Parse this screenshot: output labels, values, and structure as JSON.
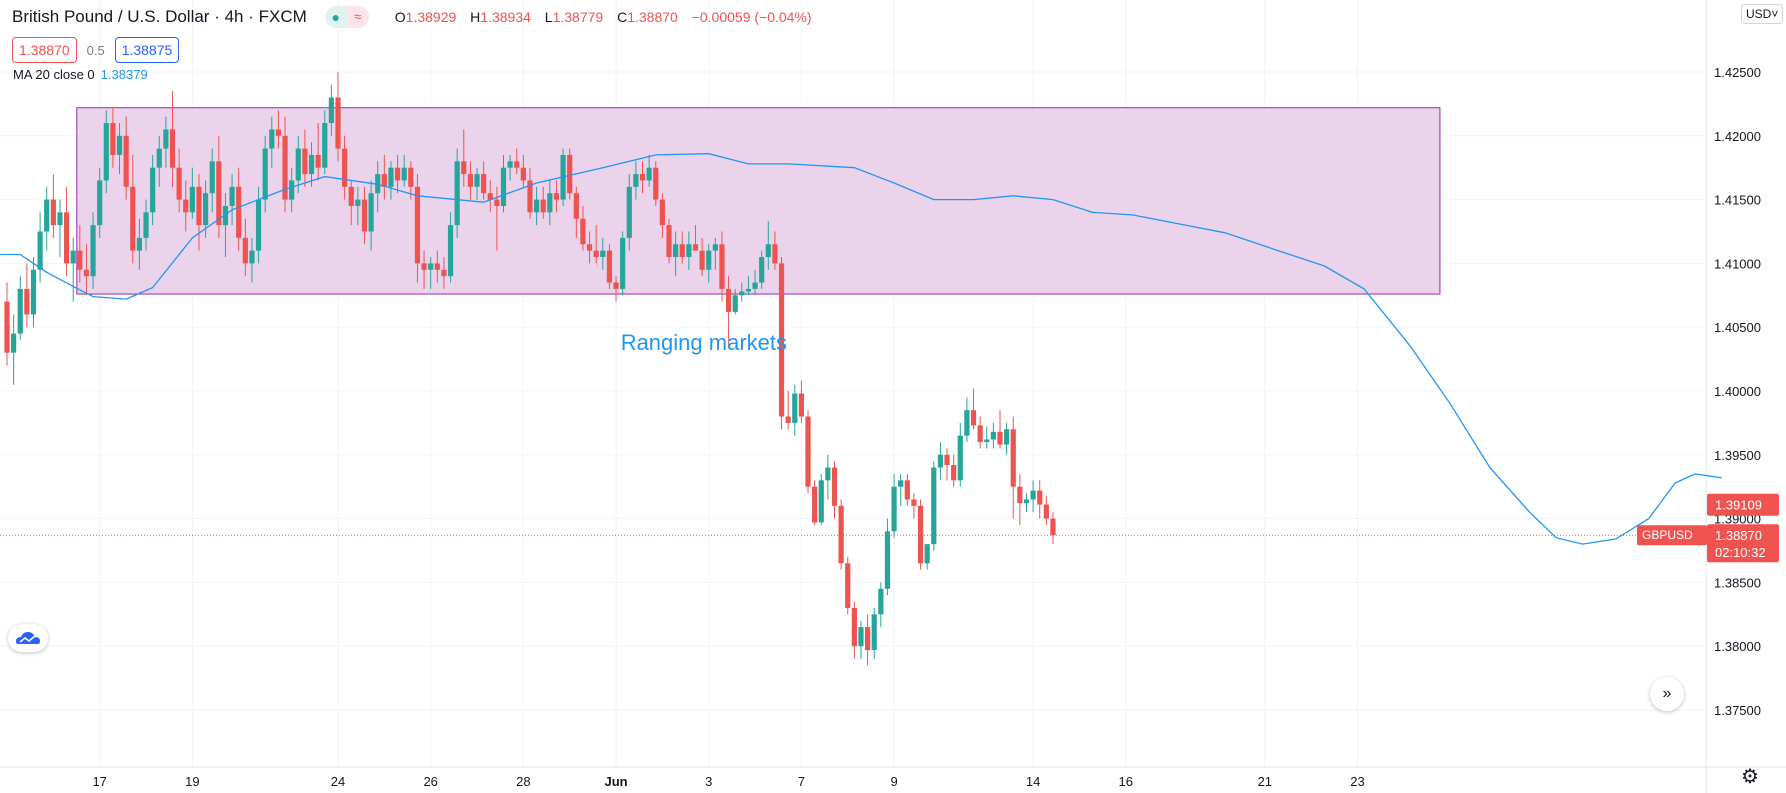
{
  "header": {
    "title": "British Pound / U.S. Dollar · 4h · FXCM",
    "o_label": "O",
    "o_value": "1.38929",
    "h_label": "H",
    "h_value": "1.38934",
    "l_label": "L",
    "l_value": "1.38779",
    "c_label": "C",
    "c_value": "1.38870",
    "change": "−0.00059 (−0.04%)"
  },
  "quote": {
    "bid": "1.38870",
    "spread": "0.5",
    "ask": "1.38875"
  },
  "indicator": {
    "label": "MA 20 close 0",
    "value": "1.38379"
  },
  "currency_button": "USD",
  "annotation": {
    "text": "Ranging markets"
  },
  "price_labels": {
    "level": "1.39109",
    "symbol": "GBPUSD",
    "last": "1.38870",
    "countdown": "02:10:32"
  },
  "colors": {
    "up": "#26a69a",
    "down": "#ef5350",
    "ma": "#2196f3",
    "range_fill": "#e7cbe9",
    "range_border": "#9c27b0",
    "annotation": "#2196f3"
  },
  "icons": [
    "indicator-status-icon",
    "wave-icon",
    "tradingview-logo-icon",
    "scroll-forward-icon",
    "settings-gear-icon"
  ],
  "chart_data": {
    "type": "candlestick",
    "symbol": "GBPUSD",
    "interval": "4h",
    "ylim": [
      1.373,
      1.43
    ],
    "y_ticks": [
      "1.42500",
      "1.42000",
      "1.41500",
      "1.41000",
      "1.40500",
      "1.40000",
      "1.39500",
      "1.39000",
      "1.38500",
      "1.38000",
      "1.37500"
    ],
    "x_ticks": [
      "17",
      "19",
      "24",
      "26",
      "28",
      "Jun",
      "3",
      "7",
      "9",
      "14",
      "16",
      "21",
      "23"
    ],
    "range_box": {
      "price_top": 1.4222,
      "price_bottom": 1.4076,
      "first_bar": 11,
      "last_bar": 216,
      "label": "Ranging markets"
    },
    "candles": [
      {
        "o": 1.407,
        "h": 1.4085,
        "l": 1.402,
        "c": 1.403
      },
      {
        "o": 1.403,
        "h": 1.406,
        "l": 1.4005,
        "c": 1.4045
      },
      {
        "o": 1.4045,
        "h": 1.409,
        "l": 1.404,
        "c": 1.408
      },
      {
        "o": 1.408,
        "h": 1.41,
        "l": 1.405,
        "c": 1.406
      },
      {
        "o": 1.406,
        "h": 1.4105,
        "l": 1.405,
        "c": 1.4095
      },
      {
        "o": 1.4095,
        "h": 1.414,
        "l": 1.4085,
        "c": 1.4125
      },
      {
        "o": 1.4125,
        "h": 1.416,
        "l": 1.411,
        "c": 1.415
      },
      {
        "o": 1.415,
        "h": 1.417,
        "l": 1.412,
        "c": 1.413
      },
      {
        "o": 1.413,
        "h": 1.415,
        "l": 1.4105,
        "c": 1.414
      },
      {
        "o": 1.414,
        "h": 1.416,
        "l": 1.409,
        "c": 1.41
      },
      {
        "o": 1.41,
        "h": 1.412,
        "l": 1.407,
        "c": 1.411
      },
      {
        "o": 1.411,
        "h": 1.413,
        "l": 1.4085,
        "c": 1.4095
      },
      {
        "o": 1.4095,
        "h": 1.4115,
        "l": 1.4075,
        "c": 1.409
      },
      {
        "o": 1.409,
        "h": 1.414,
        "l": 1.408,
        "c": 1.413
      },
      {
        "o": 1.413,
        "h": 1.4175,
        "l": 1.412,
        "c": 1.4165
      },
      {
        "o": 1.4165,
        "h": 1.422,
        "l": 1.4155,
        "c": 1.421
      },
      {
        "o": 1.421,
        "h": 1.4222,
        "l": 1.4175,
        "c": 1.4185
      },
      {
        "o": 1.4185,
        "h": 1.421,
        "l": 1.417,
        "c": 1.42
      },
      {
        "o": 1.42,
        "h": 1.4215,
        "l": 1.415,
        "c": 1.416
      },
      {
        "o": 1.416,
        "h": 1.4185,
        "l": 1.41,
        "c": 1.411
      },
      {
        "o": 1.411,
        "h": 1.4135,
        "l": 1.4095,
        "c": 1.412
      },
      {
        "o": 1.412,
        "h": 1.415,
        "l": 1.411,
        "c": 1.414
      },
      {
        "o": 1.414,
        "h": 1.4185,
        "l": 1.413,
        "c": 1.4175
      },
      {
        "o": 1.4175,
        "h": 1.42,
        "l": 1.416,
        "c": 1.419
      },
      {
        "o": 1.419,
        "h": 1.4215,
        "l": 1.4175,
        "c": 1.4205
      },
      {
        "o": 1.4205,
        "h": 1.4235,
        "l": 1.416,
        "c": 1.4175
      },
      {
        "o": 1.4175,
        "h": 1.419,
        "l": 1.414,
        "c": 1.415
      },
      {
        "o": 1.415,
        "h": 1.4165,
        "l": 1.4125,
        "c": 1.414
      },
      {
        "o": 1.414,
        "h": 1.4175,
        "l": 1.4135,
        "c": 1.416
      },
      {
        "o": 1.416,
        "h": 1.417,
        "l": 1.411,
        "c": 1.413
      },
      {
        "o": 1.413,
        "h": 1.4165,
        "l": 1.412,
        "c": 1.4155
      },
      {
        "o": 1.4155,
        "h": 1.419,
        "l": 1.414,
        "c": 1.418
      },
      {
        "o": 1.418,
        "h": 1.42,
        "l": 1.412,
        "c": 1.413
      },
      {
        "o": 1.413,
        "h": 1.4155,
        "l": 1.4105,
        "c": 1.4145
      },
      {
        "o": 1.4145,
        "h": 1.417,
        "l": 1.413,
        "c": 1.416
      },
      {
        "o": 1.416,
        "h": 1.4175,
        "l": 1.411,
        "c": 1.412
      },
      {
        "o": 1.412,
        "h": 1.4135,
        "l": 1.409,
        "c": 1.41
      },
      {
        "o": 1.41,
        "h": 1.412,
        "l": 1.4085,
        "c": 1.411
      },
      {
        "o": 1.411,
        "h": 1.416,
        "l": 1.41,
        "c": 1.415
      },
      {
        "o": 1.415,
        "h": 1.42,
        "l": 1.414,
        "c": 1.419
      },
      {
        "o": 1.419,
        "h": 1.4215,
        "l": 1.4175,
        "c": 1.4205
      },
      {
        "o": 1.4205,
        "h": 1.422,
        "l": 1.419,
        "c": 1.42
      },
      {
        "o": 1.42,
        "h": 1.4215,
        "l": 1.414,
        "c": 1.415
      },
      {
        "o": 1.415,
        "h": 1.4175,
        "l": 1.414,
        "c": 1.4165
      },
      {
        "o": 1.4165,
        "h": 1.42,
        "l": 1.4155,
        "c": 1.419
      },
      {
        "o": 1.419,
        "h": 1.4205,
        "l": 1.416,
        "c": 1.417
      },
      {
        "o": 1.417,
        "h": 1.4195,
        "l": 1.416,
        "c": 1.4185
      },
      {
        "o": 1.4185,
        "h": 1.421,
        "l": 1.4165,
        "c": 1.4175
      },
      {
        "o": 1.4175,
        "h": 1.422,
        "l": 1.417,
        "c": 1.421
      },
      {
        "o": 1.421,
        "h": 1.424,
        "l": 1.42,
        "c": 1.423
      },
      {
        "o": 1.423,
        "h": 1.425,
        "l": 1.418,
        "c": 1.419
      },
      {
        "o": 1.419,
        "h": 1.42,
        "l": 1.415,
        "c": 1.416
      },
      {
        "o": 1.416,
        "h": 1.4165,
        "l": 1.413,
        "c": 1.4145
      },
      {
        "o": 1.4145,
        "h": 1.416,
        "l": 1.413,
        "c": 1.415
      },
      {
        "o": 1.415,
        "h": 1.416,
        "l": 1.4115,
        "c": 1.4125
      },
      {
        "o": 1.4125,
        "h": 1.4165,
        "l": 1.411,
        "c": 1.4155
      },
      {
        "o": 1.4155,
        "h": 1.418,
        "l": 1.414,
        "c": 1.417
      },
      {
        "o": 1.417,
        "h": 1.4185,
        "l": 1.415,
        "c": 1.416
      },
      {
        "o": 1.416,
        "h": 1.418,
        "l": 1.415,
        "c": 1.4175
      },
      {
        "o": 1.4175,
        "h": 1.4185,
        "l": 1.4155,
        "c": 1.4165
      },
      {
        "o": 1.4165,
        "h": 1.4185,
        "l": 1.416,
        "c": 1.4175
      },
      {
        "o": 1.4175,
        "h": 1.418,
        "l": 1.415,
        "c": 1.416
      },
      {
        "o": 1.416,
        "h": 1.417,
        "l": 1.4085,
        "c": 1.41
      },
      {
        "o": 1.41,
        "h": 1.411,
        "l": 1.408,
        "c": 1.4095
      },
      {
        "o": 1.4095,
        "h": 1.4105,
        "l": 1.408,
        "c": 1.41
      },
      {
        "o": 1.41,
        "h": 1.411,
        "l": 1.4085,
        "c": 1.4095
      },
      {
        "o": 1.4095,
        "h": 1.4105,
        "l": 1.408,
        "c": 1.409
      },
      {
        "o": 1.409,
        "h": 1.414,
        "l": 1.4085,
        "c": 1.413
      },
      {
        "o": 1.413,
        "h": 1.419,
        "l": 1.412,
        "c": 1.418
      },
      {
        "o": 1.418,
        "h": 1.4205,
        "l": 1.416,
        "c": 1.417
      },
      {
        "o": 1.417,
        "h": 1.418,
        "l": 1.415,
        "c": 1.416
      },
      {
        "o": 1.416,
        "h": 1.4175,
        "l": 1.415,
        "c": 1.417
      },
      {
        "o": 1.417,
        "h": 1.418,
        "l": 1.415,
        "c": 1.4155
      },
      {
        "o": 1.4155,
        "h": 1.4165,
        "l": 1.414,
        "c": 1.415
      },
      {
        "o": 1.415,
        "h": 1.416,
        "l": 1.411,
        "c": 1.4145
      },
      {
        "o": 1.4145,
        "h": 1.4185,
        "l": 1.414,
        "c": 1.4175
      },
      {
        "o": 1.4175,
        "h": 1.4185,
        "l": 1.4165,
        "c": 1.418
      },
      {
        "o": 1.418,
        "h": 1.419,
        "l": 1.417,
        "c": 1.4175
      },
      {
        "o": 1.4175,
        "h": 1.4185,
        "l": 1.416,
        "c": 1.4165
      },
      {
        "o": 1.4165,
        "h": 1.4175,
        "l": 1.4135,
        "c": 1.414
      },
      {
        "o": 1.414,
        "h": 1.416,
        "l": 1.413,
        "c": 1.415
      },
      {
        "o": 1.415,
        "h": 1.416,
        "l": 1.4135,
        "c": 1.414
      },
      {
        "o": 1.414,
        "h": 1.4165,
        "l": 1.413,
        "c": 1.4155
      },
      {
        "o": 1.4155,
        "h": 1.4165,
        "l": 1.414,
        "c": 1.415
      },
      {
        "o": 1.415,
        "h": 1.419,
        "l": 1.4145,
        "c": 1.4185
      },
      {
        "o": 1.4185,
        "h": 1.419,
        "l": 1.415,
        "c": 1.4155
      },
      {
        "o": 1.4155,
        "h": 1.416,
        "l": 1.412,
        "c": 1.4135
      },
      {
        "o": 1.4135,
        "h": 1.4145,
        "l": 1.411,
        "c": 1.4115
      },
      {
        "o": 1.4115,
        "h": 1.4125,
        "l": 1.41,
        "c": 1.411
      },
      {
        "o": 1.411,
        "h": 1.413,
        "l": 1.41,
        "c": 1.4105
      },
      {
        "o": 1.4105,
        "h": 1.412,
        "l": 1.4095,
        "c": 1.411
      },
      {
        "o": 1.411,
        "h": 1.4115,
        "l": 1.408,
        "c": 1.4085
      },
      {
        "o": 1.4085,
        "h": 1.409,
        "l": 1.407,
        "c": 1.408
      },
      {
        "o": 1.408,
        "h": 1.4125,
        "l": 1.4075,
        "c": 1.412
      },
      {
        "o": 1.412,
        "h": 1.417,
        "l": 1.411,
        "c": 1.416
      },
      {
        "o": 1.416,
        "h": 1.418,
        "l": 1.415,
        "c": 1.417
      },
      {
        "o": 1.417,
        "h": 1.418,
        "l": 1.4155,
        "c": 1.4165
      },
      {
        "o": 1.4165,
        "h": 1.4185,
        "l": 1.416,
        "c": 1.4175
      },
      {
        "o": 1.4175,
        "h": 1.418,
        "l": 1.4145,
        "c": 1.415
      },
      {
        "o": 1.415,
        "h": 1.4155,
        "l": 1.412,
        "c": 1.413
      },
      {
        "o": 1.413,
        "h": 1.4135,
        "l": 1.41,
        "c": 1.4105
      },
      {
        "o": 1.4105,
        "h": 1.4125,
        "l": 1.409,
        "c": 1.4115
      },
      {
        "o": 1.4115,
        "h": 1.4125,
        "l": 1.41,
        "c": 1.4105
      },
      {
        "o": 1.4105,
        "h": 1.4125,
        "l": 1.4095,
        "c": 1.4115
      },
      {
        "o": 1.4115,
        "h": 1.413,
        "l": 1.411,
        "c": 1.411
      },
      {
        "o": 1.411,
        "h": 1.412,
        "l": 1.409,
        "c": 1.4095
      },
      {
        "o": 1.4095,
        "h": 1.4115,
        "l": 1.4085,
        "c": 1.411
      },
      {
        "o": 1.411,
        "h": 1.412,
        "l": 1.4095,
        "c": 1.4115
      },
      {
        "o": 1.4115,
        "h": 1.4125,
        "l": 1.407,
        "c": 1.408
      },
      {
        "o": 1.408,
        "h": 1.409,
        "l": 1.4035,
        "c": 1.4062
      },
      {
        "o": 1.4062,
        "h": 1.408,
        "l": 1.406,
        "c": 1.4075
      },
      {
        "o": 1.4075,
        "h": 1.4085,
        "l": 1.407,
        "c": 1.4078
      },
      {
        "o": 1.4078,
        "h": 1.409,
        "l": 1.4075,
        "c": 1.408
      },
      {
        "o": 1.408,
        "h": 1.4095,
        "l": 1.4075,
        "c": 1.4085
      },
      {
        "o": 1.4085,
        "h": 1.411,
        "l": 1.408,
        "c": 1.4105
      },
      {
        "o": 1.4105,
        "h": 1.4133,
        "l": 1.4095,
        "c": 1.4115
      },
      {
        "o": 1.4115,
        "h": 1.4125,
        "l": 1.4095,
        "c": 1.41
      },
      {
        "o": 1.41,
        "h": 1.4105,
        "l": 1.397,
        "c": 1.398
      },
      {
        "o": 1.398,
        "h": 1.4,
        "l": 1.397,
        "c": 1.3975
      },
      {
        "o": 1.3975,
        "h": 1.4005,
        "l": 1.3965,
        "c": 1.3998
      },
      {
        "o": 1.3998,
        "h": 1.4008,
        "l": 1.3975,
        "c": 1.398
      },
      {
        "o": 1.398,
        "h": 1.3985,
        "l": 1.392,
        "c": 1.3925
      },
      {
        "o": 1.3925,
        "h": 1.393,
        "l": 1.3895,
        "c": 1.3897
      },
      {
        "o": 1.3897,
        "h": 1.3935,
        "l": 1.3895,
        "c": 1.393
      },
      {
        "o": 1.393,
        "h": 1.395,
        "l": 1.3915,
        "c": 1.394
      },
      {
        "o": 1.394,
        "h": 1.3945,
        "l": 1.39,
        "c": 1.391
      },
      {
        "o": 1.391,
        "h": 1.3915,
        "l": 1.386,
        "c": 1.3865
      },
      {
        "o": 1.3865,
        "h": 1.387,
        "l": 1.3825,
        "c": 1.383
      },
      {
        "o": 1.383,
        "h": 1.3835,
        "l": 1.379,
        "c": 1.38
      },
      {
        "o": 1.38,
        "h": 1.382,
        "l": 1.379,
        "c": 1.3815
      },
      {
        "o": 1.3815,
        "h": 1.3825,
        "l": 1.3785,
        "c": 1.3797
      },
      {
        "o": 1.3797,
        "h": 1.383,
        "l": 1.379,
        "c": 1.3825
      },
      {
        "o": 1.3825,
        "h": 1.385,
        "l": 1.3815,
        "c": 1.3845
      },
      {
        "o": 1.3845,
        "h": 1.39,
        "l": 1.384,
        "c": 1.389
      },
      {
        "o": 1.389,
        "h": 1.3935,
        "l": 1.3885,
        "c": 1.3925
      },
      {
        "o": 1.3925,
        "h": 1.3935,
        "l": 1.391,
        "c": 1.393
      },
      {
        "o": 1.393,
        "h": 1.3935,
        "l": 1.391,
        "c": 1.3915
      },
      {
        "o": 1.3915,
        "h": 1.392,
        "l": 1.39,
        "c": 1.391
      },
      {
        "o": 1.391,
        "h": 1.3915,
        "l": 1.386,
        "c": 1.3865
      },
      {
        "o": 1.3865,
        "h": 1.388,
        "l": 1.386,
        "c": 1.388
      },
      {
        "o": 1.388,
        "h": 1.3945,
        "l": 1.3875,
        "c": 1.394
      },
      {
        "o": 1.394,
        "h": 1.396,
        "l": 1.393,
        "c": 1.395
      },
      {
        "o": 1.395,
        "h": 1.3955,
        "l": 1.393,
        "c": 1.3942
      },
      {
        "o": 1.3942,
        "h": 1.395,
        "l": 1.3925,
        "c": 1.393
      },
      {
        "o": 1.393,
        "h": 1.3975,
        "l": 1.3925,
        "c": 1.3965
      },
      {
        "o": 1.3965,
        "h": 1.3995,
        "l": 1.396,
        "c": 1.3985
      },
      {
        "o": 1.3985,
        "h": 1.4002,
        "l": 1.397,
        "c": 1.3973
      },
      {
        "o": 1.3973,
        "h": 1.398,
        "l": 1.3955,
        "c": 1.396
      },
      {
        "o": 1.396,
        "h": 1.3972,
        "l": 1.3955,
        "c": 1.3962
      },
      {
        "o": 1.3962,
        "h": 1.3975,
        "l": 1.3955,
        "c": 1.3968
      },
      {
        "o": 1.3968,
        "h": 1.3985,
        "l": 1.3955,
        "c": 1.3958
      },
      {
        "o": 1.3958,
        "h": 1.3975,
        "l": 1.395,
        "c": 1.397
      },
      {
        "o": 1.397,
        "h": 1.398,
        "l": 1.39,
        "c": 1.3925
      },
      {
        "o": 1.3925,
        "h": 1.3935,
        "l": 1.3895,
        "c": 1.3912
      },
      {
        "o": 1.3912,
        "h": 1.392,
        "l": 1.3905,
        "c": 1.3915
      },
      {
        "o": 1.3915,
        "h": 1.393,
        "l": 1.3905,
        "c": 1.3922
      },
      {
        "o": 1.3922,
        "h": 1.393,
        "l": 1.39,
        "c": 1.3911
      },
      {
        "o": 1.3911,
        "h": 1.3918,
        "l": 1.3895,
        "c": 1.39
      },
      {
        "o": 1.39,
        "h": 1.3905,
        "l": 1.388,
        "c": 1.3887
      }
    ],
    "ma20": [
      {
        "bar": -1,
        "v": 1.4107
      },
      {
        "bar": 2,
        "v": 1.4107
      },
      {
        "bar": 6,
        "v": 1.4093
      },
      {
        "bar": 10,
        "v": 1.4082
      },
      {
        "bar": 13,
        "v": 1.4074
      },
      {
        "bar": 18,
        "v": 1.4072
      },
      {
        "bar": 22,
        "v": 1.4081
      },
      {
        "bar": 28,
        "v": 1.412
      },
      {
        "bar": 34,
        "v": 1.4142
      },
      {
        "bar": 42,
        "v": 1.4158
      },
      {
        "bar": 48,
        "v": 1.4168
      },
      {
        "bar": 56,
        "v": 1.4162
      },
      {
        "bar": 62,
        "v": 1.4153
      },
      {
        "bar": 72,
        "v": 1.4148
      },
      {
        "bar": 80,
        "v": 1.4163
      },
      {
        "bar": 90,
        "v": 1.4175
      },
      {
        "bar": 98,
        "v": 1.4185
      },
      {
        "bar": 106,
        "v": 1.4186
      },
      {
        "bar": 112,
        "v": 1.4178
      },
      {
        "bar": 118,
        "v": 1.4178
      },
      {
        "bar": 128,
        "v": 1.4175
      },
      {
        "bar": 134,
        "v": 1.4163
      },
      {
        "bar": 140,
        "v": 1.415
      },
      {
        "bar": 146,
        "v": 1.415
      },
      {
        "bar": 152,
        "v": 1.4153
      },
      {
        "bar": 158,
        "v": 1.415
      },
      {
        "bar": 164,
        "v": 1.414
      },
      {
        "bar": 170,
        "v": 1.4138
      },
      {
        "bar": 178,
        "v": 1.413
      },
      {
        "bar": 184,
        "v": 1.4124
      },
      {
        "bar": 192,
        "v": 1.411
      },
      {
        "bar": 199,
        "v": 1.4098
      },
      {
        "bar": 205,
        "v": 1.408
      },
      {
        "bar": 212,
        "v": 1.4035
      },
      {
        "bar": 218,
        "v": 1.399
      },
      {
        "bar": 224,
        "v": 1.394
      },
      {
        "bar": 230,
        "v": 1.3905
      },
      {
        "bar": 234,
        "v": 1.3885
      },
      {
        "bar": 238,
        "v": 1.388
      },
      {
        "bar": 243,
        "v": 1.3884
      },
      {
        "bar": 248,
        "v": 1.39
      },
      {
        "bar": 252,
        "v": 1.3928
      },
      {
        "bar": 255,
        "v": 1.3935
      },
      {
        "bar": 259,
        "v": 1.3932
      }
    ]
  }
}
